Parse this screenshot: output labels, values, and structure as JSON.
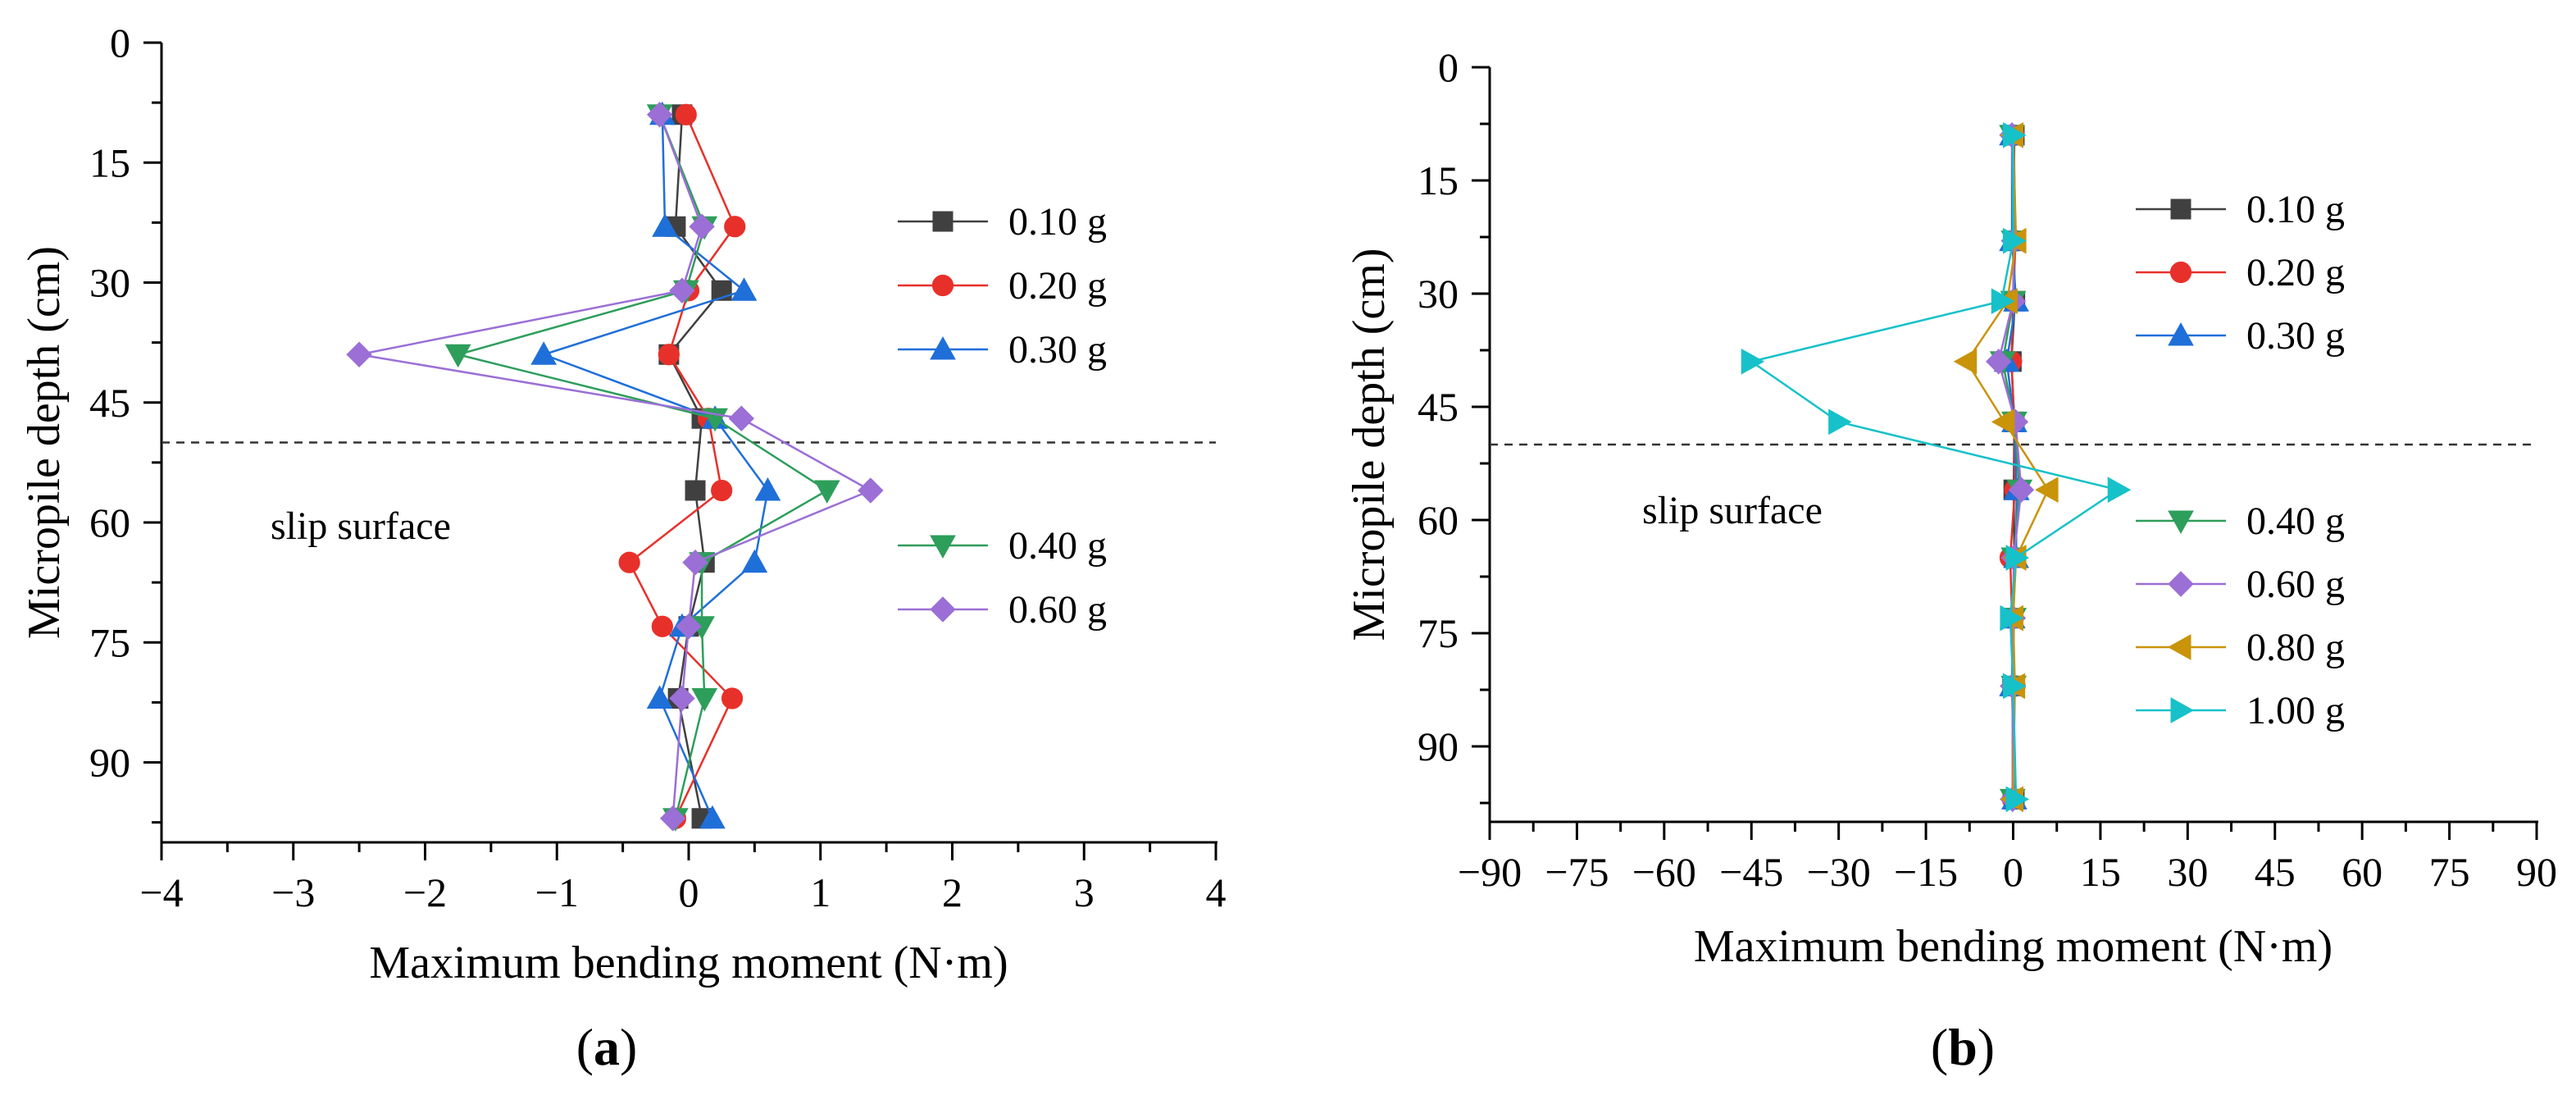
{
  "chart_data": [
    {
      "type": "line",
      "panel_label": "a",
      "title": "",
      "xlabel": "Maximum bending moment (N·m)",
      "ylabel": "Micropile depth (cm)",
      "xlim": [
        -4,
        4
      ],
      "ylim": [
        0,
        100
      ],
      "y_inverted": true,
      "xticks": [
        -4,
        -3,
        -2,
        -1,
        0,
        1,
        2,
        3,
        4
      ],
      "xtick_labels": [
        "−4",
        "−3",
        "−2",
        "−1",
        "0",
        "1",
        "2",
        "3",
        "4"
      ],
      "yticks": [
        0,
        15,
        30,
        45,
        60,
        75,
        90
      ],
      "ytick_labels": [
        "0",
        "15",
        "30",
        "45",
        "60",
        "75",
        "90"
      ],
      "slip_surface_depth": 50,
      "annotation": "slip surface",
      "depths": [
        9,
        23,
        31,
        39,
        47,
        56,
        65,
        73,
        82,
        97
      ],
      "series": [
        {
          "name": "0.10 g",
          "color": "#404040",
          "marker": "square",
          "values": [
            -0.05,
            -0.1,
            0.25,
            -0.15,
            0.1,
            0.05,
            0.12,
            0.0,
            -0.08,
            0.1
          ]
        },
        {
          "name": "0.20 g",
          "color": "#e8302a",
          "marker": "circle",
          "values": [
            -0.02,
            0.35,
            0.0,
            -0.15,
            0.15,
            0.25,
            -0.45,
            -0.2,
            0.33,
            -0.1
          ]
        },
        {
          "name": "0.30 g",
          "color": "#1f6fd9",
          "marker": "triangle-up",
          "values": [
            -0.2,
            -0.18,
            0.42,
            -1.1,
            0.2,
            0.6,
            0.5,
            -0.05,
            -0.22,
            0.18
          ]
        },
        {
          "name": "0.40 g",
          "color": "#2e9e5b",
          "marker": "triangle-down",
          "values": [
            -0.22,
            0.12,
            -0.02,
            -1.75,
            0.2,
            1.05,
            0.1,
            0.1,
            0.12,
            -0.1
          ]
        },
        {
          "name": "0.60 g",
          "color": "#9b6fd6",
          "marker": "diamond",
          "values": [
            -0.22,
            0.1,
            -0.05,
            -2.5,
            0.4,
            1.38,
            0.05,
            0.0,
            -0.05,
            -0.12
          ]
        }
      ],
      "legend_groups": [
        [
          "0.10 g",
          "0.20 g",
          "0.30 g"
        ],
        [
          "0.40 g",
          "0.60 g"
        ]
      ]
    },
    {
      "type": "line",
      "panel_label": "b",
      "title": "",
      "xlabel": "Maximum bending moment (N·m)",
      "ylabel": "Micropile depth (cm)",
      "xlim": [
        -90,
        90
      ],
      "ylim": [
        0,
        100
      ],
      "y_inverted": true,
      "xticks": [
        -90,
        -75,
        -60,
        -45,
        -30,
        -15,
        0,
        15,
        30,
        45,
        60,
        75,
        90
      ],
      "xtick_labels": [
        "−90",
        "−75",
        "−60",
        "−45",
        "−30",
        "−15",
        "0",
        "15",
        "30",
        "45",
        "60",
        "75",
        "90"
      ],
      "yticks": [
        0,
        15,
        30,
        45,
        60,
        75,
        90
      ],
      "ytick_labels": [
        "0",
        "15",
        "30",
        "45",
        "60",
        "75",
        "90"
      ],
      "slip_surface_depth": 50,
      "annotation": "slip surface",
      "depths": [
        9,
        23,
        31,
        39,
        47,
        56,
        65,
        73,
        82,
        97
      ],
      "series": [
        {
          "name": "0.10 g",
          "color": "#404040",
          "marker": "square",
          "values": [
            0.2,
            0.1,
            0.3,
            -0.3,
            0.2,
            0.1,
            0.2,
            0.0,
            -0.1,
            0.2
          ]
        },
        {
          "name": "0.20 g",
          "color": "#e8302a",
          "marker": "circle",
          "values": [
            0.1,
            0.4,
            0.0,
            -0.3,
            0.2,
            0.3,
            -0.5,
            -0.2,
            0.3,
            -0.1
          ]
        },
        {
          "name": "0.30 g",
          "color": "#1f6fd9",
          "marker": "triangle-up",
          "values": [
            -0.2,
            -0.2,
            0.5,
            -1.1,
            0.2,
            0.6,
            0.5,
            -0.1,
            -0.2,
            0.2
          ]
        },
        {
          "name": "0.40 g",
          "color": "#2e9e5b",
          "marker": "triangle-down",
          "values": [
            -0.2,
            0.1,
            0.0,
            -1.8,
            0.2,
            1.1,
            0.1,
            0.1,
            0.1,
            -0.1
          ]
        },
        {
          "name": "0.60 g",
          "color": "#9b6fd6",
          "marker": "diamond",
          "values": [
            -0.2,
            0.1,
            0.0,
            -2.5,
            0.4,
            1.4,
            0.1,
            0.0,
            -0.1,
            -0.1
          ]
        },
        {
          "name": "0.80 g",
          "color": "#c9930a",
          "marker": "triangle-left",
          "values": [
            0.0,
            0.5,
            -1.0,
            -8.0,
            -1.5,
            6.0,
            0.5,
            0.0,
            0.3,
            0.0
          ]
        },
        {
          "name": "1.00 g",
          "color": "#17c1c9",
          "marker": "triangle-right",
          "values": [
            0.0,
            0.0,
            -2.0,
            -45.0,
            -30.0,
            18.0,
            0.5,
            -0.5,
            0.0,
            0.5
          ]
        }
      ],
      "legend_groups": [
        [
          "0.10 g",
          "0.20 g",
          "0.30 g"
        ],
        [
          "0.40 g",
          "0.60 g",
          "0.80 g",
          "1.00 g"
        ]
      ]
    }
  ]
}
